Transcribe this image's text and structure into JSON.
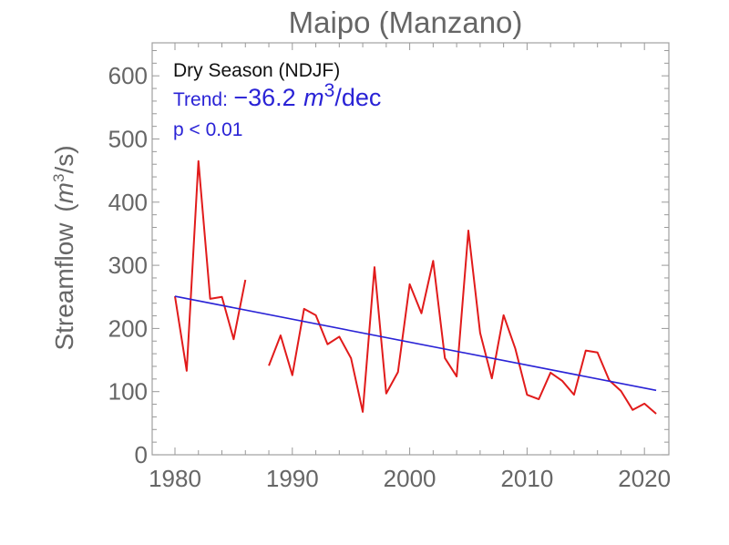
{
  "chart_data": {
    "type": "line",
    "title": "Maipo (Manzano)",
    "xlabel": "",
    "ylabel": "Streamflow (m³/s)",
    "ylabel_parts": {
      "text": "Streamflow",
      "unit_m": "m",
      "unit_exp": "3",
      "unit_rest": "/s"
    },
    "xlim": [
      1980,
      2021
    ],
    "ylim": [
      0,
      650
    ],
    "x_ticks": [
      1980,
      1990,
      2000,
      2010,
      2020
    ],
    "y_ticks": [
      0,
      100,
      200,
      300,
      400,
      500,
      600
    ],
    "grid": false,
    "annotations": {
      "season": "Dry Season (NDJF)",
      "trend_prefix": "Trend:",
      "trend_value": "−36.2",
      "trend_unit_m": "m",
      "trend_unit_exp": "3",
      "trend_unit_rest": "/dec",
      "pvalue": "p < 0.01"
    },
    "colors": {
      "series": "#e11b1b",
      "trend": "#2a23d6",
      "axis": "#999999",
      "text": "#666666"
    },
    "series": [
      {
        "name": "Streamflow",
        "x": [
          1980,
          1981,
          1982,
          1983,
          1984,
          1985,
          1986,
          1987,
          1988,
          1989,
          1990,
          1991,
          1992,
          1993,
          1994,
          1995,
          1996,
          1997,
          1998,
          1999,
          2000,
          2001,
          2002,
          2003,
          2004,
          2005,
          2006,
          2007,
          2008,
          2009,
          2010,
          2011,
          2012,
          2013,
          2014,
          2015,
          2016,
          2017,
          2018,
          2019,
          2020,
          2021
        ],
        "values": [
          251,
          133,
          465,
          247,
          250,
          183,
          277,
          null,
          141,
          189,
          126,
          231,
          221,
          175,
          187,
          153,
          68,
          297,
          97,
          131,
          270,
          224,
          307,
          153,
          124,
          355,
          193,
          121,
          221,
          168,
          95,
          88,
          130,
          117,
          95,
          165,
          162,
          118,
          101,
          71,
          81,
          65
        ]
      },
      {
        "name": "Trend",
        "x": [
          1980,
          2021
        ],
        "values": [
          251,
          102
        ]
      }
    ]
  }
}
